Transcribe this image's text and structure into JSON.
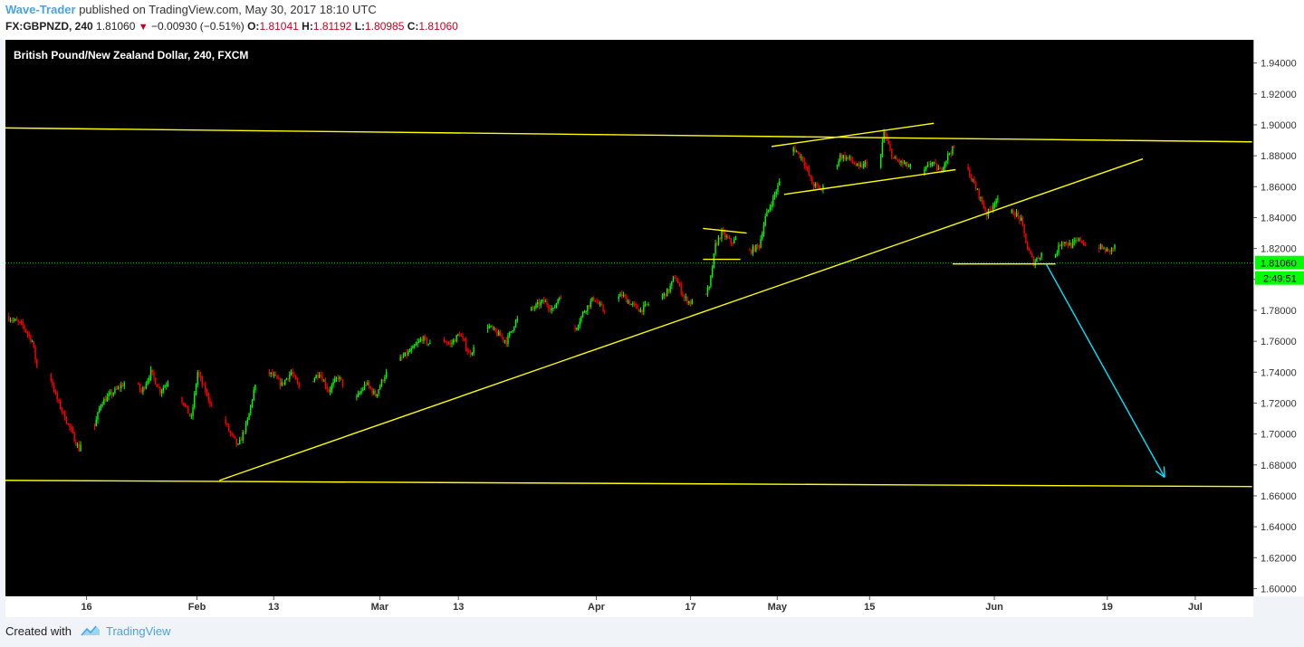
{
  "header": {
    "author": "Wave-Trader",
    "published_text": "published on TradingView.com, May 30, 2017 18:10 UTC",
    "symbol": "FX:GBPNZD, 240",
    "last_price": "1.81060",
    "change": "−0.00930 (−0.51%)",
    "open_label": "O:",
    "open_value": "1.81041",
    "high_label": "H:",
    "high_value": "1.81192",
    "low_label": "L:",
    "low_value": "1.80985",
    "close_label": "C:",
    "close_value": "1.81060"
  },
  "footer": {
    "created_with": "Created with",
    "brand": "TradingView"
  },
  "colors": {
    "background": "#000000",
    "bull_candle": "#00ff00",
    "bear_candle": "#ff0000",
    "trendline": "#ffff00",
    "projection_arrow": "#00e5ff",
    "price_line": "#00c000",
    "price_label_bg": "#00ff00"
  },
  "chart_data": {
    "type": "candlestick",
    "title": "British Pound/New Zealand Dollar, 240, FXCM",
    "y_ticks": [
      "1.94000",
      "1.92000",
      "1.90000",
      "1.88000",
      "1.86000",
      "1.84000",
      "1.82000",
      "1.80000",
      "1.78000",
      "1.76000",
      "1.74000",
      "1.72000",
      "1.70000",
      "1.68000",
      "1.66000",
      "1.64000",
      "1.62000",
      "1.60000"
    ],
    "ylim": [
      1.595,
      1.955
    ],
    "x_ticks": [
      "16",
      "Feb",
      "13",
      "Mar",
      "13",
      "Apr",
      "17",
      "May",
      "15",
      "Jun",
      "19",
      "Jul"
    ],
    "current_price_label": "1.81060",
    "countdown_label": "2:49:51",
    "price_path": [
      [
        0,
        1.776
      ],
      [
        2.5,
        1.77
      ],
      [
        4,
        1.76
      ],
      [
        5,
        1.738
      ],
      [
        6.5,
        1.742
      ],
      [
        8,
        1.722
      ],
      [
        10,
        1.704
      ],
      [
        11.5,
        1.69
      ],
      [
        13,
        1.712
      ],
      [
        14,
        1.705
      ],
      [
        15,
        1.72
      ],
      [
        17,
        1.727
      ],
      [
        18.5,
        1.732
      ],
      [
        20,
        1.738
      ],
      [
        21.5,
        1.727
      ],
      [
        23,
        1.74
      ],
      [
        24.5,
        1.728
      ],
      [
        26,
        1.735
      ],
      [
        28,
        1.722
      ],
      [
        29.5,
        1.71
      ],
      [
        30.5,
        1.74
      ],
      [
        31.5,
        1.73
      ],
      [
        33,
        1.716
      ],
      [
        34.5,
        1.712
      ],
      [
        35.5,
        1.702
      ],
      [
        37,
        1.692
      ],
      [
        38.5,
        1.708
      ],
      [
        39.5,
        1.728
      ],
      [
        41,
        1.742
      ],
      [
        42.5,
        1.738
      ],
      [
        44,
        1.732
      ],
      [
        45.5,
        1.74
      ],
      [
        47,
        1.728
      ],
      [
        48.5,
        1.733
      ],
      [
        50,
        1.74
      ],
      [
        51.5,
        1.728
      ],
      [
        53,
        1.737
      ],
      [
        54.5,
        1.728
      ],
      [
        56,
        1.723
      ],
      [
        57.5,
        1.733
      ],
      [
        59,
        1.725
      ],
      [
        60.5,
        1.738
      ],
      [
        62,
        1.745
      ],
      [
        63.5,
        1.75
      ],
      [
        65,
        1.755
      ],
      [
        66.5,
        1.762
      ],
      [
        68,
        1.757
      ],
      [
        69.5,
        1.762
      ],
      [
        71,
        1.758
      ],
      [
        72.5,
        1.765
      ],
      [
        74,
        1.752
      ],
      [
        75.5,
        1.758
      ],
      [
        77,
        1.77
      ],
      [
        78.5,
        1.765
      ],
      [
        80,
        1.76
      ],
      [
        81.5,
        1.773
      ],
      [
        83,
        1.778
      ],
      [
        84.5,
        1.782
      ],
      [
        86,
        1.786
      ],
      [
        87.5,
        1.78
      ],
      [
        88.5,
        1.79
      ],
      [
        89.5,
        1.775
      ],
      [
        91,
        1.768
      ],
      [
        92.5,
        1.78
      ],
      [
        94,
        1.788
      ],
      [
        95.5,
        1.78
      ],
      [
        97,
        1.785
      ],
      [
        98.5,
        1.79
      ],
      [
        100,
        1.784
      ],
      [
        101.5,
        1.78
      ],
      [
        103,
        1.785
      ],
      [
        104.5,
        1.787
      ],
      [
        106,
        1.793
      ],
      [
        107,
        1.802
      ],
      [
        108.5,
        1.788
      ],
      [
        109.5,
        1.785
      ],
      [
        111,
        1.787
      ],
      [
        112.5,
        1.794
      ],
      [
        113.5,
        1.822
      ],
      [
        114.5,
        1.83
      ],
      [
        116,
        1.824
      ],
      [
        117.5,
        1.827
      ],
      [
        119,
        1.818
      ],
      [
        120.5,
        1.822
      ],
      [
        121.5,
        1.84
      ],
      [
        123,
        1.855
      ],
      [
        124.5,
        1.87
      ],
      [
        126,
        1.885
      ],
      [
        127.5,
        1.878
      ],
      [
        129,
        1.862
      ],
      [
        130.5,
        1.858
      ],
      [
        132,
        1.866
      ],
      [
        133.5,
        1.88
      ],
      [
        135,
        1.878
      ],
      [
        136.5,
        1.872
      ],
      [
        138,
        1.876
      ],
      [
        139.5,
        1.865
      ],
      [
        140.5,
        1.895
      ],
      [
        142,
        1.878
      ],
      [
        143.5,
        1.875
      ],
      [
        145,
        1.872
      ],
      [
        146.5,
        1.867
      ],
      [
        148,
        1.876
      ],
      [
        149.5,
        1.87
      ],
      [
        151,
        1.882
      ],
      [
        152.5,
        1.888
      ],
      [
        154,
        1.87
      ],
      [
        155.5,
        1.857
      ],
      [
        157,
        1.842
      ],
      [
        158.5,
        1.852
      ],
      [
        160,
        1.844
      ],
      [
        161.5,
        1.843
      ],
      [
        162.5,
        1.838
      ],
      [
        163.5,
        1.82
      ],
      [
        164.5,
        1.811
      ],
      [
        166,
        1.818
      ],
      [
        167.5,
        1.812
      ],
      [
        169,
        1.825
      ],
      [
        170.5,
        1.822
      ],
      [
        172,
        1.826
      ],
      [
        173.5,
        1.818
      ],
      [
        175,
        1.821
      ],
      [
        176.5,
        1.818
      ],
      [
        177.5,
        1.821
      ]
    ],
    "trendlines": [
      {
        "from": [
          -0.3,
          1.898
        ],
        "to": [
          199.5,
          1.889
        ]
      },
      {
        "from": [
          -0.3,
          1.67
        ],
        "to": [
          199.5,
          1.666
        ]
      },
      {
        "from": [
          34,
          1.67
        ],
        "to": [
          182,
          1.878
        ]
      },
      {
        "from": [
          122.5,
          1.886
        ],
        "to": [
          148.5,
          1.901
        ]
      },
      {
        "from": [
          124.5,
          1.855
        ],
        "to": [
          152,
          1.871
        ]
      },
      {
        "from": [
          111.5,
          1.833
        ],
        "to": [
          118.5,
          1.83
        ]
      },
      {
        "from": [
          111.5,
          1.813
        ],
        "to": [
          117.5,
          1.813
        ]
      },
      {
        "from": [
          151.5,
          1.81
        ],
        "to": [
          168,
          1.81
        ]
      }
    ],
    "projection_arrow": {
      "from": [
        166.5,
        1.81
      ],
      "to": [
        185.5,
        1.672
      ]
    }
  }
}
